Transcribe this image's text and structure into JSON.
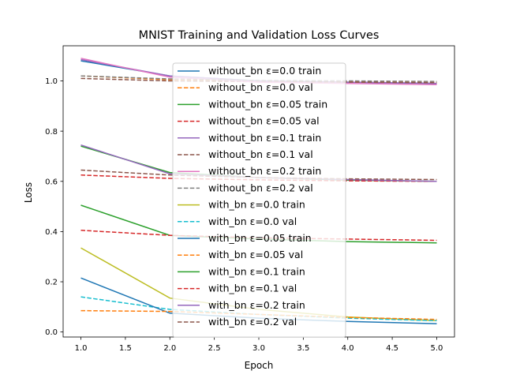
{
  "chart_data": {
    "type": "line",
    "title": "MNIST Training and Validation Loss Curves",
    "xlabel": "Epoch",
    "ylabel": "Loss",
    "xlim": [
      0.8,
      5.2
    ],
    "ylim": [
      -0.02,
      1.14
    ],
    "x": [
      1,
      2,
      3,
      4,
      5
    ],
    "xticks": [
      "1.0",
      "1.5",
      "2.0",
      "2.5",
      "3.0",
      "3.5",
      "4.0",
      "4.5",
      "5.0"
    ],
    "xtick_values": [
      1.0,
      1.5,
      2.0,
      2.5,
      3.0,
      3.5,
      4.0,
      4.5,
      5.0
    ],
    "yticks": [
      "0.0",
      "0.2",
      "0.4",
      "0.6",
      "0.8",
      "1.0"
    ],
    "ytick_values": [
      0.0,
      0.2,
      0.4,
      0.6,
      0.8,
      1.0
    ],
    "grid": false,
    "legend_position": "upper-center",
    "series": [
      {
        "name": "without_bn ε=0.0 train",
        "color": "#1f77b4",
        "style": "solid",
        "values": [
          1.08,
          1.02,
          1.0,
          0.995,
          0.99
        ]
      },
      {
        "name": "without_bn ε=0.0 val",
        "color": "#ff7f0e",
        "style": "dashed",
        "values": [
          1.02,
          1.005,
          1.0,
          0.997,
          0.995
        ]
      },
      {
        "name": "without_bn ε=0.05 train",
        "color": "#2ca02c",
        "style": "solid",
        "values": [
          0.74,
          0.635,
          0.615,
          0.605,
          0.6
        ]
      },
      {
        "name": "without_bn ε=0.05 val",
        "color": "#d62728",
        "style": "dashed",
        "values": [
          0.625,
          0.612,
          0.606,
          0.602,
          0.6
        ]
      },
      {
        "name": "without_bn ε=0.1 train",
        "color": "#9467bd",
        "style": "solid",
        "values": [
          1.085,
          1.02,
          1.0,
          0.995,
          0.99
        ]
      },
      {
        "name": "without_bn ε=0.1 val",
        "color": "#8c564b",
        "style": "dashed",
        "values": [
          1.01,
          1.0,
          0.997,
          0.995,
          0.993
        ]
      },
      {
        "name": "without_bn ε=0.2 train",
        "color": "#e377c2",
        "style": "solid",
        "values": [
          1.09,
          1.015,
          0.995,
          0.99,
          0.985
        ]
      },
      {
        "name": "without_bn ε=0.2 val",
        "color": "#7f7f7f",
        "style": "dashed",
        "values": [
          1.02,
          1.008,
          1.002,
          1.0,
          0.998
        ]
      },
      {
        "name": "with_bn ε=0.0 train",
        "color": "#bcbd22",
        "style": "solid",
        "values": [
          0.335,
          0.135,
          0.09,
          0.06,
          0.045
        ]
      },
      {
        "name": "with_bn ε=0.0 val",
        "color": "#17becf",
        "style": "dashed",
        "values": [
          0.14,
          0.09,
          0.07,
          0.055,
          0.045
        ]
      },
      {
        "name": "with_bn ε=0.05 train",
        "color": "#1f77b4",
        "style": "solid",
        "values": [
          0.215,
          0.075,
          0.055,
          0.042,
          0.033
        ]
      },
      {
        "name": "with_bn ε=0.05 val",
        "color": "#ff7f0e",
        "style": "dashed",
        "values": [
          0.085,
          0.082,
          0.07,
          0.058,
          0.05
        ]
      },
      {
        "name": "with_bn ε=0.1 train",
        "color": "#2ca02c",
        "style": "solid",
        "values": [
          0.505,
          0.385,
          0.37,
          0.36,
          0.355
        ]
      },
      {
        "name": "with_bn ε=0.1 val",
        "color": "#d62728",
        "style": "dashed",
        "values": [
          0.405,
          0.385,
          0.375,
          0.37,
          0.365
        ]
      },
      {
        "name": "with_bn ε=0.2 train",
        "color": "#9467bd",
        "style": "solid",
        "values": [
          0.745,
          0.63,
          0.615,
          0.607,
          0.6
        ]
      },
      {
        "name": "with_bn ε=0.2 val",
        "color": "#8c564b",
        "style": "dashed",
        "values": [
          0.645,
          0.625,
          0.615,
          0.61,
          0.607
        ]
      }
    ]
  }
}
